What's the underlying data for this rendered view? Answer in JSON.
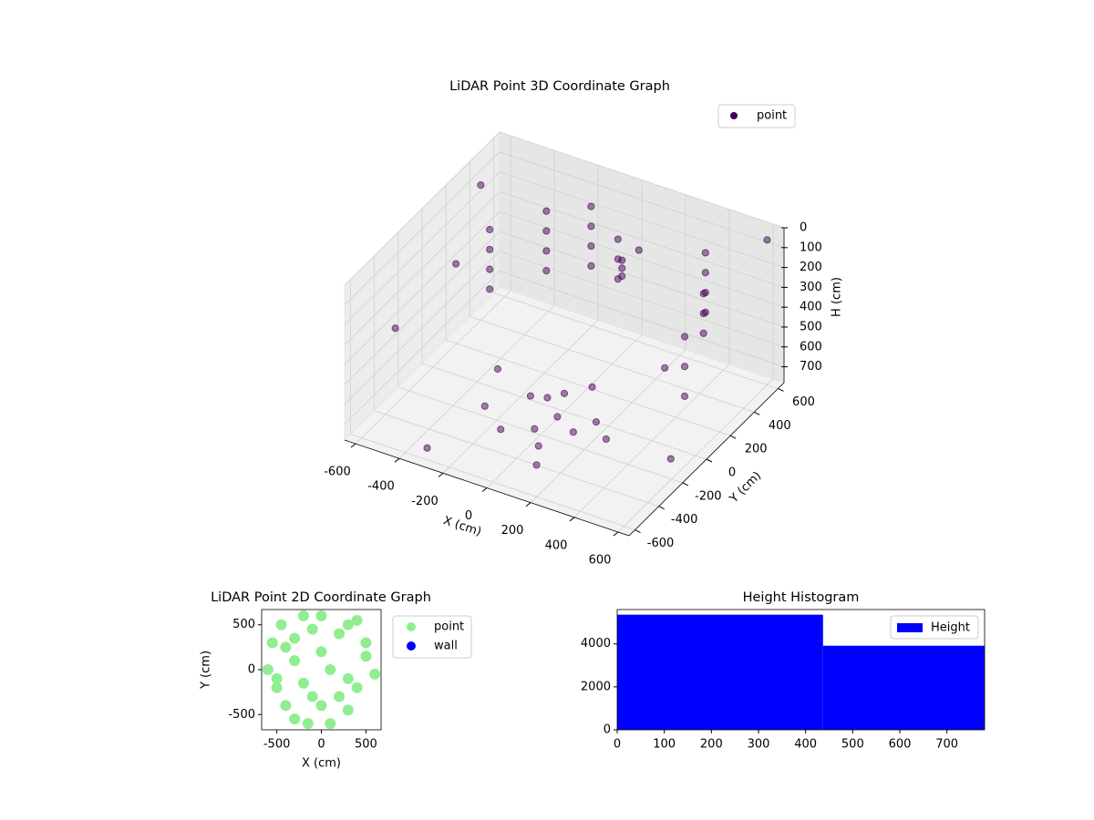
{
  "chart_data": [
    {
      "type": "scatter3d",
      "title": "LiDAR Point 3D Coordinate Graph",
      "xlabel": "X (cm)",
      "ylabel": "Y (cm)",
      "zlabel": "H (cm)",
      "xlim": [
        -650,
        650
      ],
      "ylim": [
        -650,
        650
      ],
      "zlim": [
        780,
        0
      ],
      "xticks": [
        -600,
        -400,
        -200,
        0,
        200,
        400,
        600
      ],
      "yticks": [
        -600,
        -400,
        -200,
        0,
        200,
        400,
        600
      ],
      "zticks": [
        0,
        100,
        200,
        300,
        400,
        500,
        600,
        700
      ],
      "legend": "upper right",
      "grid": true,
      "series": [
        {
          "name": "point",
          "color": "#440154",
          "x": [
            -450,
            -450,
            -450,
            -450,
            -300,
            -300,
            -300,
            -300,
            -150,
            -150,
            -150,
            -150,
            0,
            0,
            0,
            100,
            100,
            100,
            400,
            400,
            400,
            400,
            500,
            500,
            500,
            550,
            550,
            550,
            -100,
            -50,
            0,
            50,
            100,
            150,
            -200,
            -100,
            0,
            100,
            200,
            300,
            -500,
            -550,
            -600,
            600,
            650,
            -300,
            200,
            350,
            -250,
            150
          ],
          "y": [
            200,
            200,
            200,
            200,
            400,
            400,
            400,
            400,
            500,
            500,
            500,
            500,
            450,
            450,
            450,
            300,
            300,
            300,
            450,
            450,
            450,
            450,
            250,
            250,
            250,
            0,
            0,
            0,
            -100,
            -50,
            0,
            -150,
            50,
            -200,
            -300,
            -350,
            -250,
            -400,
            -100,
            -200,
            -500,
            100,
            400,
            600,
            -300,
            -600,
            -600,
            200,
            -100,
            350
          ],
          "z": [
            150,
            250,
            350,
            450,
            120,
            220,
            320,
            420,
            100,
            200,
            300,
            400,
            180,
            280,
            380,
            160,
            200,
            240,
            100,
            200,
            300,
            400,
            150,
            250,
            350,
            200,
            350,
            500,
            680,
            700,
            690,
            700,
            650,
            710,
            650,
            700,
            720,
            680,
            700,
            690,
            250,
            300,
            100,
            50,
            600,
            720,
            620,
            550,
            600,
            120
          ]
        }
      ]
    },
    {
      "type": "scatter",
      "title": "LiDAR Point 2D Coordinate Graph",
      "xlabel": "X (cm)",
      "ylabel": "Y (cm)",
      "xlim": [
        -670,
        670
      ],
      "ylim": [
        -670,
        670
      ],
      "xticks": [
        -500,
        0,
        500
      ],
      "yticks": [
        -500,
        0,
        500
      ],
      "legend": "outside right",
      "series": [
        {
          "name": "point",
          "color": "#90ee90",
          "x": [
            -600,
            -550,
            -500,
            -450,
            -400,
            -300,
            -200,
            -100,
            0,
            100,
            200,
            300,
            400,
            500,
            600,
            -500,
            -300,
            -100,
            100,
            300,
            500,
            -400,
            -200,
            0,
            200,
            400,
            -300,
            0,
            300,
            -150
          ],
          "y": [
            0,
            300,
            -200,
            500,
            -400,
            100,
            600,
            -300,
            200,
            -600,
            400,
            -100,
            550,
            300,
            -50,
            -100,
            -550,
            450,
            0,
            -450,
            150,
            250,
            -150,
            -400,
            -300,
            -200,
            350,
            600,
            500,
            -600
          ]
        },
        {
          "name": "wall",
          "color": "#0000ff",
          "x": [],
          "y": []
        }
      ]
    },
    {
      "type": "histogram",
      "title": "Height Histogram",
      "bins": [
        0,
        437,
        780
      ],
      "counts": [
        5360,
        3915
      ],
      "series_name": "Height",
      "color": "#0000ff",
      "xlim": [
        0,
        780
      ],
      "ylim": [
        0,
        5600
      ],
      "xticks": [
        0,
        100,
        200,
        300,
        400,
        500,
        600,
        700
      ],
      "yticks": [
        0,
        2000,
        4000
      ],
      "legend": "upper right"
    }
  ]
}
